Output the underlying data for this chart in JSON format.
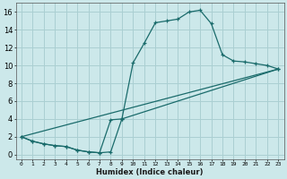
{
  "xlabel": "Humidex (Indice chaleur)",
  "bg_color": "#cce8ea",
  "grid_color": "#aacfd2",
  "line_color": "#1a6b6b",
  "xlim": [
    -0.5,
    23.5
  ],
  "ylim": [
    -0.5,
    17.0
  ],
  "xtick_labels": [
    "0",
    "1",
    "2",
    "3",
    "4",
    "5",
    "6",
    "7",
    "8",
    "9",
    "10",
    "11",
    "12",
    "13",
    "14",
    "15",
    "16",
    "17",
    "18",
    "19",
    "20",
    "21",
    "22",
    "23"
  ],
  "ytick_values": [
    0,
    2,
    4,
    6,
    8,
    10,
    12,
    14,
    16
  ],
  "line1_x": [
    0,
    1,
    2,
    3,
    4,
    5,
    6,
    7,
    8,
    9,
    10,
    11,
    12,
    13,
    14,
    15,
    16,
    17,
    18,
    19,
    20,
    21,
    22,
    23
  ],
  "line1_y": [
    2.0,
    1.5,
    1.2,
    1.0,
    0.9,
    0.5,
    0.3,
    0.2,
    0.3,
    4.0,
    10.3,
    12.5,
    14.8,
    15.0,
    15.2,
    16.0,
    16.2,
    14.7,
    11.2,
    10.5,
    10.4,
    10.2,
    10.0,
    9.6
  ],
  "line2_x": [
    0,
    1,
    2,
    3,
    4,
    5,
    6,
    7,
    8,
    9,
    23
  ],
  "line2_y": [
    2.0,
    1.5,
    1.2,
    1.0,
    0.9,
    0.5,
    0.3,
    0.2,
    3.9,
    4.0,
    9.6
  ],
  "line3_x": [
    0,
    23
  ],
  "line3_y": [
    2.0,
    9.6
  ]
}
